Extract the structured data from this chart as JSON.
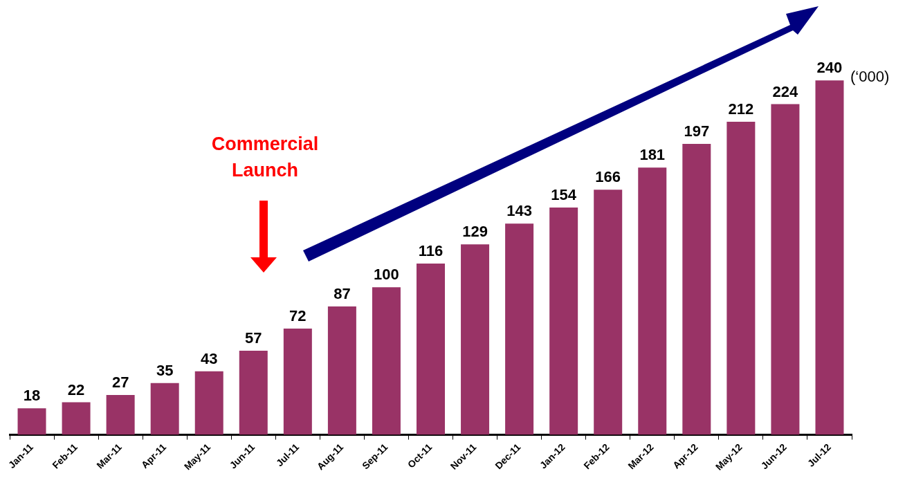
{
  "chart_data": {
    "type": "bar",
    "categories": [
      "Jan-11",
      "Feb-11",
      "Mar-11",
      "Apr-11",
      "May-11",
      "Jun-11",
      "Jul-11",
      "Aug-11",
      "Sep-11",
      "Oct-11",
      "Nov-11",
      "Dec-11",
      "Jan-12",
      "Feb-12",
      "Mar-12",
      "Apr-12",
      "May-12",
      "Jun-12",
      "Jul-12"
    ],
    "values": [
      18,
      22,
      27,
      35,
      43,
      57,
      72,
      87,
      100,
      116,
      129,
      143,
      154,
      166,
      181,
      197,
      212,
      224,
      240
    ],
    "color": "#993366",
    "data_labels": true,
    "tick_labels": "x",
    "annotations": [
      "Commercial Launch",
      "(‘000)"
    ]
  }
}
